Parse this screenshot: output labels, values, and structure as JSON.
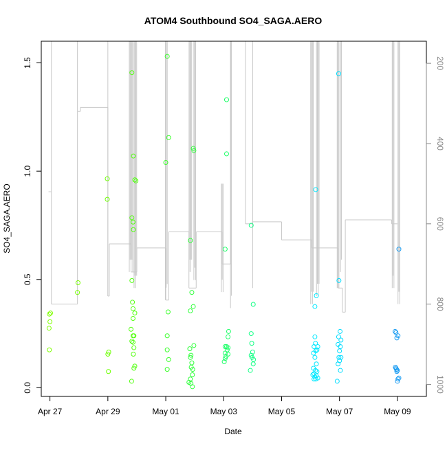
{
  "chart_data": {
    "type": "scatter",
    "title": "ATOM4 Southbound SO4_SAGA.AERO",
    "xlabel": "Date",
    "ylabel": "SO4_SAGA.AERO",
    "xlim": [
      -0.3,
      13.0
    ],
    "ylim": [
      -0.04,
      1.6
    ],
    "x_ticks": [
      {
        "value": 0,
        "label": "Apr 27"
      },
      {
        "value": 2,
        "label": "Apr 29"
      },
      {
        "value": 4,
        "label": "May 01"
      },
      {
        "value": 6,
        "label": "May 03"
      },
      {
        "value": 8,
        "label": "May 05"
      },
      {
        "value": 10,
        "label": "May 07"
      },
      {
        "value": 12,
        "label": "May 09"
      }
    ],
    "y_ticks": [
      {
        "value": 0.0,
        "label": "0.0"
      },
      {
        "value": 0.5,
        "label": "0.5"
      },
      {
        "value": 1.0,
        "label": "1.0"
      },
      {
        "value": 1.5,
        "label": "1.5"
      }
    ],
    "secondary_axis": {
      "description": "pressure / altitude (inverted)",
      "lim": [
        1030,
        145
      ],
      "ticks": [
        200,
        400,
        600,
        800,
        1000
      ],
      "color": "#888888"
    },
    "flight_track": {
      "color": "#c8c8c8",
      "legs": [
        {
          "start": -0.05,
          "end": 0.05,
          "value": 520
        },
        {
          "start": 0.05,
          "end": 0.95,
          "value": 800
        },
        {
          "start": 0.95,
          "end": 1.05,
          "value": 320
        },
        {
          "start": 1.05,
          "end": 2.0,
          "value": 310
        },
        {
          "start": 2.0,
          "end": 2.05,
          "value": 780
        },
        {
          "start": 2.05,
          "end": 2.8,
          "value": 650
        },
        {
          "start": 2.8,
          "end": 3.0,
          "value": 720
        },
        {
          "start": 3.0,
          "end": 4.0,
          "value": 660
        },
        {
          "start": 4.0,
          "end": 4.1,
          "value": 790
        },
        {
          "start": 4.1,
          "end": 4.8,
          "value": 620
        },
        {
          "start": 4.8,
          "end": 5.05,
          "value": 760
        },
        {
          "start": 5.05,
          "end": 5.95,
          "value": 620
        },
        {
          "start": 5.95,
          "end": 6.25,
          "value": 700
        },
        {
          "start": 6.25,
          "end": 6.75,
          "value": 145
        },
        {
          "start": 6.75,
          "end": 7.0,
          "value": 600
        },
        {
          "start": 7.0,
          "end": 8.0,
          "value": 595
        },
        {
          "start": 8.0,
          "end": 9.05,
          "value": 640
        },
        {
          "start": 9.05,
          "end": 9.95,
          "value": 660
        },
        {
          "start": 9.95,
          "end": 10.1,
          "value": 760
        },
        {
          "start": 10.1,
          "end": 10.2,
          "value": 820
        },
        {
          "start": 10.2,
          "end": 11.8,
          "value": 590
        },
        {
          "start": 11.8,
          "end": 12.0,
          "value": 600
        }
      ],
      "profiles": [
        {
          "x": 0.05,
          "min": 145,
          "max": 520,
          "n": 1
        },
        {
          "x": 0.95,
          "min": 145,
          "max": 320,
          "n": 1
        },
        {
          "x": 2.0,
          "min": 145,
          "max": 780,
          "n": 1
        },
        {
          "x": 2.8,
          "min": 145,
          "max": 720,
          "n": 5
        },
        {
          "x": 2.95,
          "min": 145,
          "max": 760,
          "n": 4
        },
        {
          "x": 4.0,
          "min": 145,
          "max": 790,
          "n": 2
        },
        {
          "x": 4.05,
          "min": 145,
          "max": 750,
          "n": 1
        },
        {
          "x": 4.85,
          "min": 145,
          "max": 720,
          "n": 4
        },
        {
          "x": 5.0,
          "min": 145,
          "max": 740,
          "n": 3
        },
        {
          "x": 5.95,
          "min": 500,
          "max": 770,
          "n": 3
        },
        {
          "x": 6.25,
          "min": 145,
          "max": 810,
          "n": 2
        },
        {
          "x": 7.0,
          "min": 145,
          "max": 760,
          "n": 1
        },
        {
          "x": 9.05,
          "min": 145,
          "max": 800,
          "n": 4
        },
        {
          "x": 9.25,
          "min": 145,
          "max": 780,
          "n": 4
        },
        {
          "x": 9.95,
          "min": 145,
          "max": 760,
          "n": 3
        },
        {
          "x": 10.05,
          "min": 145,
          "max": 720,
          "n": 2
        },
        {
          "x": 11.85,
          "min": 145,
          "max": 760,
          "n": 3
        },
        {
          "x": 12.05,
          "min": 145,
          "max": 800,
          "n": 3
        }
      ]
    },
    "series": [
      {
        "name": "SO4_SAGA.AERO",
        "points": [
          {
            "x": -0.02,
            "y": 0.34,
            "color": "#7fff00"
          },
          {
            "x": 0.02,
            "y": 0.345,
            "color": "#7fff00"
          },
          {
            "x": 0.0,
            "y": 0.305,
            "color": "#7fff00"
          },
          {
            "x": -0.03,
            "y": 0.275,
            "color": "#7fff00"
          },
          {
            "x": -0.02,
            "y": 0.175,
            "color": "#7fff00"
          },
          {
            "x": 0.97,
            "y": 0.485,
            "color": "#76ff00"
          },
          {
            "x": 0.95,
            "y": 0.44,
            "color": "#76ff00"
          },
          {
            "x": 1.98,
            "y": 0.965,
            "color": "#6cff00"
          },
          {
            "x": 1.98,
            "y": 0.87,
            "color": "#6cff00"
          },
          {
            "x": 2.03,
            "y": 0.165,
            "color": "#6cff00"
          },
          {
            "x": 2.0,
            "y": 0.155,
            "color": "#6cff00"
          },
          {
            "x": 2.02,
            "y": 0.075,
            "color": "#6cff00"
          },
          {
            "x": 2.83,
            "y": 1.455,
            "color": "#52ff0f"
          },
          {
            "x": 2.88,
            "y": 1.07,
            "color": "#52ff0f"
          },
          {
            "x": 2.93,
            "y": 0.96,
            "color": "#52ff0f"
          },
          {
            "x": 2.97,
            "y": 0.955,
            "color": "#52ff0f"
          },
          {
            "x": 2.83,
            "y": 0.785,
            "color": "#52ff0f"
          },
          {
            "x": 2.87,
            "y": 0.765,
            "color": "#52ff0f"
          },
          {
            "x": 2.88,
            "y": 0.73,
            "color": "#52ff0f"
          },
          {
            "x": 2.83,
            "y": 0.495,
            "color": "#52ff0f"
          },
          {
            "x": 2.85,
            "y": 0.395,
            "color": "#52ff0f"
          },
          {
            "x": 2.87,
            "y": 0.365,
            "color": "#52ff0f"
          },
          {
            "x": 2.93,
            "y": 0.345,
            "color": "#52ff0f"
          },
          {
            "x": 2.87,
            "y": 0.32,
            "color": "#52ff0f"
          },
          {
            "x": 2.8,
            "y": 0.27,
            "color": "#52ff0f"
          },
          {
            "x": 2.87,
            "y": 0.24,
            "color": "#52ff0f"
          },
          {
            "x": 2.9,
            "y": 0.24,
            "color": "#52ff0f"
          },
          {
            "x": 2.83,
            "y": 0.215,
            "color": "#52ff0f"
          },
          {
            "x": 2.87,
            "y": 0.21,
            "color": "#52ff0f"
          },
          {
            "x": 2.9,
            "y": 0.185,
            "color": "#52ff0f"
          },
          {
            "x": 2.88,
            "y": 0.155,
            "color": "#52ff0f"
          },
          {
            "x": 2.93,
            "y": 0.1,
            "color": "#52ff0f"
          },
          {
            "x": 2.9,
            "y": 0.09,
            "color": "#52ff0f"
          },
          {
            "x": 2.82,
            "y": 0.03,
            "color": "#52ff0f"
          },
          {
            "x": 4.05,
            "y": 1.53,
            "color": "#3aff2a"
          },
          {
            "x": 4.1,
            "y": 1.155,
            "color": "#3aff2a"
          },
          {
            "x": 4.0,
            "y": 1.04,
            "color": "#3aff2a"
          },
          {
            "x": 4.08,
            "y": 0.35,
            "color": "#3aff2a"
          },
          {
            "x": 4.05,
            "y": 0.24,
            "color": "#3aff2a"
          },
          {
            "x": 4.05,
            "y": 0.175,
            "color": "#3aff2a"
          },
          {
            "x": 4.1,
            "y": 0.13,
            "color": "#3aff2a"
          },
          {
            "x": 4.05,
            "y": 0.085,
            "color": "#3aff2a"
          },
          {
            "x": 4.95,
            "y": 1.105,
            "color": "#2eff3a"
          },
          {
            "x": 4.97,
            "y": 1.095,
            "color": "#2eff3a"
          },
          {
            "x": 4.85,
            "y": 0.68,
            "color": "#2eff3a"
          },
          {
            "x": 4.9,
            "y": 0.44,
            "color": "#2eff3a"
          },
          {
            "x": 4.95,
            "y": 0.375,
            "color": "#2eff3a"
          },
          {
            "x": 4.85,
            "y": 0.355,
            "color": "#2eff3a"
          },
          {
            "x": 4.97,
            "y": 0.195,
            "color": "#2eff3a"
          },
          {
            "x": 4.83,
            "y": 0.18,
            "color": "#2eff3a"
          },
          {
            "x": 4.87,
            "y": 0.15,
            "color": "#2eff3a"
          },
          {
            "x": 4.85,
            "y": 0.14,
            "color": "#2eff3a"
          },
          {
            "x": 4.9,
            "y": 0.115,
            "color": "#2eff3a"
          },
          {
            "x": 4.88,
            "y": 0.095,
            "color": "#2eff3a"
          },
          {
            "x": 4.93,
            "y": 0.085,
            "color": "#2eff3a"
          },
          {
            "x": 4.92,
            "y": 0.06,
            "color": "#2eff3a"
          },
          {
            "x": 4.85,
            "y": 0.04,
            "color": "#2eff3a"
          },
          {
            "x": 4.8,
            "y": 0.025,
            "color": "#2eff3a"
          },
          {
            "x": 4.87,
            "y": 0.02,
            "color": "#2eff3a"
          },
          {
            "x": 4.92,
            "y": 0.005,
            "color": "#2eff3a"
          },
          {
            "x": 6.1,
            "y": 1.33,
            "color": "#1aff66"
          },
          {
            "x": 6.1,
            "y": 1.08,
            "color": "#1aff66"
          },
          {
            "x": 6.05,
            "y": 0.64,
            "color": "#1aff66"
          },
          {
            "x": 6.17,
            "y": 0.26,
            "color": "#1aff66"
          },
          {
            "x": 6.15,
            "y": 0.235,
            "color": "#1aff66"
          },
          {
            "x": 6.05,
            "y": 0.19,
            "color": "#1aff66"
          },
          {
            "x": 6.1,
            "y": 0.19,
            "color": "#1aff66"
          },
          {
            "x": 6.15,
            "y": 0.185,
            "color": "#1aff66"
          },
          {
            "x": 6.12,
            "y": 0.175,
            "color": "#1aff66"
          },
          {
            "x": 6.05,
            "y": 0.16,
            "color": "#1aff66"
          },
          {
            "x": 6.15,
            "y": 0.155,
            "color": "#1aff66"
          },
          {
            "x": 6.08,
            "y": 0.145,
            "color": "#1aff66"
          },
          {
            "x": 6.05,
            "y": 0.135,
            "color": "#1aff66"
          },
          {
            "x": 6.02,
            "y": 0.12,
            "color": "#1aff66"
          },
          {
            "x": 6.95,
            "y": 0.75,
            "color": "#10ff84"
          },
          {
            "x": 7.02,
            "y": 0.385,
            "color": "#10ff84"
          },
          {
            "x": 6.95,
            "y": 0.25,
            "color": "#10ff84"
          },
          {
            "x": 6.97,
            "y": 0.205,
            "color": "#10ff84"
          },
          {
            "x": 7.0,
            "y": 0.165,
            "color": "#10ff84"
          },
          {
            "x": 6.95,
            "y": 0.15,
            "color": "#10ff84"
          },
          {
            "x": 6.98,
            "y": 0.14,
            "color": "#10ff84"
          },
          {
            "x": 7.03,
            "y": 0.13,
            "color": "#10ff84"
          },
          {
            "x": 7.02,
            "y": 0.11,
            "color": "#10ff84"
          },
          {
            "x": 6.92,
            "y": 0.08,
            "color": "#10ff84"
          },
          {
            "x": 9.18,
            "y": 0.915,
            "color": "#00e8ff"
          },
          {
            "x": 9.2,
            "y": 0.425,
            "color": "#00e8ff"
          },
          {
            "x": 9.15,
            "y": 0.375,
            "color": "#00e8ff"
          },
          {
            "x": 9.15,
            "y": 0.235,
            "color": "#00e8ff"
          },
          {
            "x": 9.17,
            "y": 0.205,
            "color": "#00e8ff"
          },
          {
            "x": 9.12,
            "y": 0.19,
            "color": "#00e8ff"
          },
          {
            "x": 9.25,
            "y": 0.19,
            "color": "#00e8ff"
          },
          {
            "x": 9.22,
            "y": 0.175,
            "color": "#00e8ff"
          },
          {
            "x": 9.18,
            "y": 0.17,
            "color": "#00e8ff"
          },
          {
            "x": 9.1,
            "y": 0.16,
            "color": "#00e8ff"
          },
          {
            "x": 9.15,
            "y": 0.14,
            "color": "#00e8ff"
          },
          {
            "x": 9.2,
            "y": 0.11,
            "color": "#00e8ff"
          },
          {
            "x": 9.1,
            "y": 0.09,
            "color": "#00e8ff"
          },
          {
            "x": 9.17,
            "y": 0.08,
            "color": "#00e8ff"
          },
          {
            "x": 9.22,
            "y": 0.075,
            "color": "#00e8ff"
          },
          {
            "x": 9.12,
            "y": 0.065,
            "color": "#00e8ff"
          },
          {
            "x": 9.08,
            "y": 0.06,
            "color": "#00e8ff"
          },
          {
            "x": 9.2,
            "y": 0.055,
            "color": "#00e8ff"
          },
          {
            "x": 9.15,
            "y": 0.05,
            "color": "#00e8ff"
          },
          {
            "x": 9.25,
            "y": 0.045,
            "color": "#00e8ff"
          },
          {
            "x": 9.12,
            "y": 0.04,
            "color": "#00e8ff"
          },
          {
            "x": 9.18,
            "y": 0.04,
            "color": "#00e8ff"
          },
          {
            "x": 9.97,
            "y": 1.45,
            "color": "#00dcff"
          },
          {
            "x": 9.98,
            "y": 0.495,
            "color": "#00dcff"
          },
          {
            "x": 10.02,
            "y": 0.26,
            "color": "#00dcff"
          },
          {
            "x": 9.97,
            "y": 0.235,
            "color": "#00dcff"
          },
          {
            "x": 10.05,
            "y": 0.22,
            "color": "#00dcff"
          },
          {
            "x": 9.95,
            "y": 0.2,
            "color": "#00dcff"
          },
          {
            "x": 10.03,
            "y": 0.19,
            "color": "#00dcff"
          },
          {
            "x": 10.0,
            "y": 0.17,
            "color": "#00dcff"
          },
          {
            "x": 9.98,
            "y": 0.14,
            "color": "#00dcff"
          },
          {
            "x": 10.05,
            "y": 0.14,
            "color": "#00dcff"
          },
          {
            "x": 10.0,
            "y": 0.125,
            "color": "#00dcff"
          },
          {
            "x": 9.95,
            "y": 0.11,
            "color": "#00dcff"
          },
          {
            "x": 10.03,
            "y": 0.08,
            "color": "#00dcff"
          },
          {
            "x": 9.92,
            "y": 0.03,
            "color": "#00dcff"
          },
          {
            "x": 12.05,
            "y": 0.64,
            "color": "#1a9cf2"
          },
          {
            "x": 11.92,
            "y": 0.26,
            "color": "#1a9cf2"
          },
          {
            "x": 11.95,
            "y": 0.255,
            "color": "#1a9cf2"
          },
          {
            "x": 12.02,
            "y": 0.24,
            "color": "#1a9cf2"
          },
          {
            "x": 11.98,
            "y": 0.23,
            "color": "#1a9cf2"
          },
          {
            "x": 11.93,
            "y": 0.095,
            "color": "#1a9cf2"
          },
          {
            "x": 11.95,
            "y": 0.09,
            "color": "#1a9cf2"
          },
          {
            "x": 11.97,
            "y": 0.085,
            "color": "#1a9cf2"
          },
          {
            "x": 12.0,
            "y": 0.08,
            "color": "#1a9cf2"
          },
          {
            "x": 11.98,
            "y": 0.075,
            "color": "#1a9cf2"
          },
          {
            "x": 12.05,
            "y": 0.045,
            "color": "#1a9cf2"
          },
          {
            "x": 12.02,
            "y": 0.04,
            "color": "#1a9cf2"
          },
          {
            "x": 12.0,
            "y": 0.03,
            "color": "#1a9cf2"
          }
        ]
      }
    ]
  }
}
